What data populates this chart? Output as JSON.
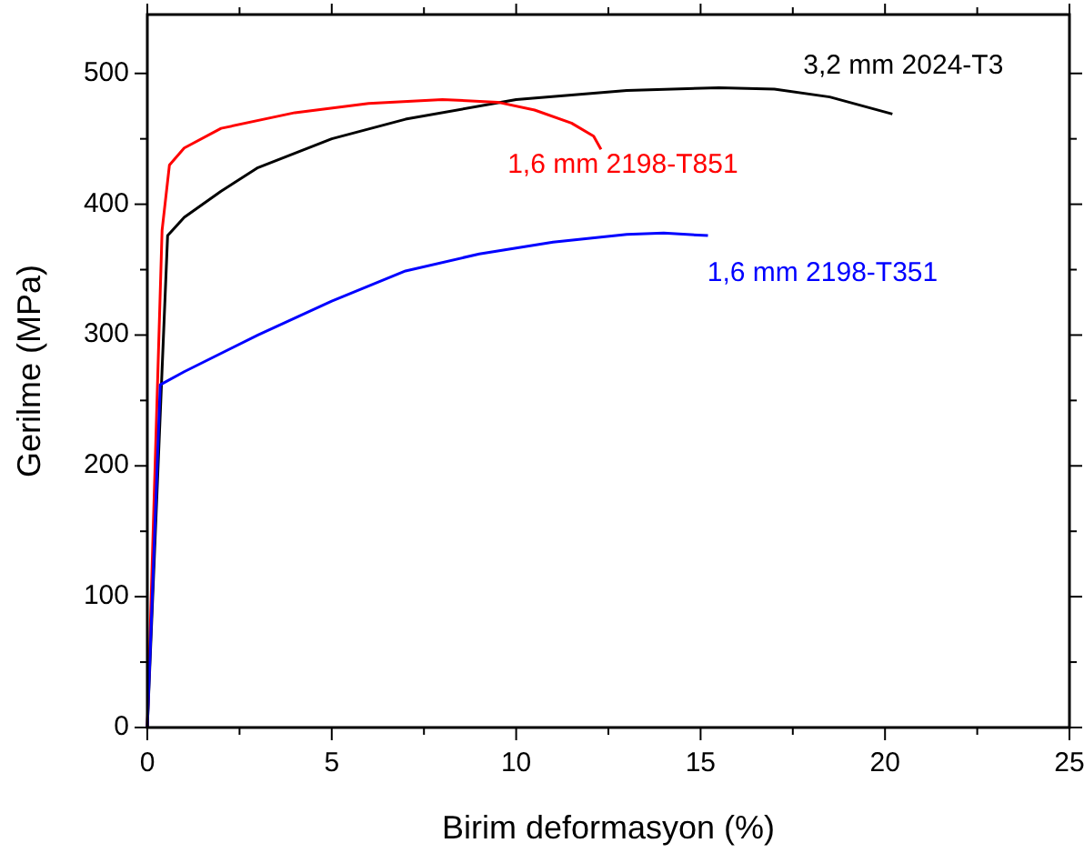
{
  "chart_data": {
    "type": "line",
    "xlabel": "Birim deformasyon (%)",
    "ylabel": "Gerilme (MPa)",
    "xlim": [
      0,
      25
    ],
    "xticks": [
      0,
      {
        "value": 2.5,
        "label": null
      },
      5,
      {
        "value": 7.5,
        "label": null
      },
      10,
      {
        "value": 12.5,
        "label": null
      },
      15,
      {
        "value": 17.5,
        "label": null
      },
      20,
      {
        "value": 22.5,
        "label": null
      },
      25
    ],
    "ylim": [
      0,
      545
    ],
    "yticks": [
      0,
      {
        "value": 50,
        "label": null
      },
      100,
      {
        "value": 150,
        "label": null
      },
      200,
      {
        "value": 250,
        "label": null
      },
      300,
      {
        "value": 350,
        "label": null
      },
      400,
      {
        "value": 450,
        "label": null
      },
      500
    ],
    "grid": false,
    "marker": "none",
    "line_style": "solid",
    "series": [
      {
        "name": "3,2 mm 2024-T3",
        "color": "#000000",
        "x": [
          0,
          0.55,
          1,
          2,
          3,
          5,
          7,
          10,
          13,
          15.5,
          17,
          18.5,
          20.2
        ],
        "values": [
          0,
          376,
          390,
          410,
          428,
          450,
          465,
          480,
          487,
          489,
          488,
          482,
          469
        ]
      },
      {
        "name": "1,6 mm 2198-T851",
        "color": "#ff0000",
        "x": [
          0,
          0.4,
          0.6,
          1,
          2,
          4,
          6,
          8,
          9.5,
          10.5,
          11.5,
          12.1,
          12.3
        ],
        "values": [
          0,
          380,
          430,
          443,
          458,
          470,
          477,
          480,
          478,
          472,
          462,
          452,
          442
        ]
      },
      {
        "name": "1,6 mm 2198-T351",
        "color": "#0000ff",
        "x": [
          0,
          0.35,
          1,
          3,
          5,
          7,
          9,
          11,
          13,
          14,
          15.2
        ],
        "values": [
          0,
          262,
          272,
          300,
          326,
          349,
          362,
          371,
          377,
          378,
          376
        ]
      }
    ]
  }
}
